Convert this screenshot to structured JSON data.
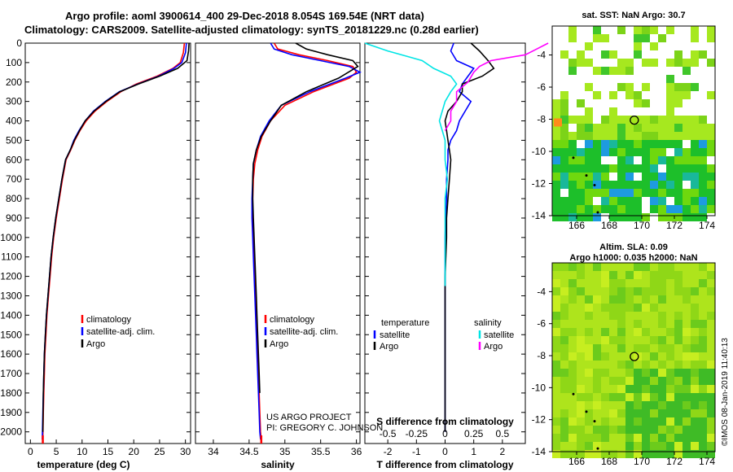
{
  "header": {
    "line1": "Argo profile: aoml 3900614_400 29-Dec-2018 8.054S 169.54E (NRT data)",
    "line2": "Climatology: CARS2009. Satellite-adjusted climatology: synTS_20181229.nc (0.28d earlier)"
  },
  "credits": {
    "project": "US ARGO PROJECT",
    "pi": "PI: GREGORY C. JOHNSON",
    "imos": "©IMOS 08-Jan-2019 11:40:13"
  },
  "colors": {
    "climatology": "#ff0000",
    "satellite": "#0000ff",
    "argo": "#000000",
    "sat_salinity": "#00e5e5",
    "argo_salinity": "#ff00ff"
  },
  "chart_data": [
    {
      "type": "line",
      "xlabel": "temperature (deg C)",
      "ylabel": "",
      "xlim": [
        -1,
        31
      ],
      "ylim": [
        2060,
        0
      ],
      "xticks": [
        0,
        5,
        10,
        15,
        20,
        25,
        30
      ],
      "yticks": [
        0,
        100,
        200,
        300,
        400,
        500,
        600,
        700,
        800,
        900,
        1000,
        1100,
        1200,
        1300,
        1400,
        1500,
        1600,
        1700,
        1800,
        1900,
        2000
      ],
      "legend": [
        "climatology",
        "satellite-adj. clim.",
        "Argo"
      ],
      "series": [
        {
          "name": "climatology",
          "color": "#ff0000",
          "x": [
            29.8,
            29.6,
            29.0,
            27.6,
            24.5,
            20.5,
            17.5,
            14.8,
            12.5,
            10.8,
            9.6,
            8.6,
            7.8,
            6.9,
            6.2,
            5.6,
            5.0,
            4.5,
            4.1,
            3.8,
            3.5,
            3.2,
            3.0,
            2.8,
            2.7,
            2.6,
            2.5,
            2.4
          ],
          "y": [
            0,
            50,
            100,
            130,
            170,
            210,
            250,
            300,
            350,
            400,
            450,
            500,
            550,
            600,
            700,
            800,
            900,
            1000,
            1100,
            1200,
            1300,
            1400,
            1500,
            1600,
            1700,
            1800,
            1900,
            2040
          ]
        },
        {
          "name": "satellite-adj. clim.",
          "color": "#0000ff",
          "x": [
            30.2,
            30.0,
            29.3,
            27.8,
            24.8,
            20.8,
            17.2,
            14.5,
            12.2,
            10.6,
            9.4,
            8.4,
            7.7,
            6.8,
            6.1,
            5.5,
            4.9,
            4.4,
            4.0,
            3.7,
            3.4,
            3.1,
            2.9,
            2.7,
            2.6,
            2.5,
            2.4,
            2.3
          ],
          "y": [
            0,
            50,
            100,
            130,
            170,
            210,
            250,
            300,
            350,
            400,
            450,
            500,
            550,
            600,
            700,
            800,
            900,
            1000,
            1100,
            1200,
            1300,
            1400,
            1500,
            1600,
            1700,
            1800,
            1900,
            2040
          ]
        },
        {
          "name": "Argo",
          "color": "#000000",
          "x": [
            30.7,
            30.6,
            30.3,
            28.5,
            25.0,
            20.9,
            17.3,
            14.6,
            12.3,
            10.6,
            9.5,
            8.5,
            7.7,
            6.8,
            6.1,
            5.5,
            4.9,
            4.4,
            4.0,
            3.7,
            3.4,
            3.1,
            2.9,
            2.7,
            2.6,
            2.5,
            2.4
          ],
          "y": [
            0,
            40,
            90,
            130,
            170,
            210,
            250,
            300,
            350,
            400,
            450,
            500,
            550,
            600,
            700,
            800,
            900,
            1000,
            1100,
            1200,
            1300,
            1400,
            1500,
            1600,
            1700,
            1800,
            2000
          ]
        }
      ]
    },
    {
      "type": "line",
      "xlabel": "salinity",
      "xlim": [
        33.75,
        36.05
      ],
      "ylim": [
        2060,
        0
      ],
      "xticks": [
        34,
        34.5,
        35,
        35.5,
        36
      ],
      "legend": [
        "climatology",
        "satellite-adj. clim.",
        "Argo"
      ],
      "series": [
        {
          "name": "climatology",
          "color": "#ff0000",
          "x": [
            34.85,
            34.9,
            35.2,
            35.6,
            35.95,
            36.0,
            35.9,
            35.4,
            35.0,
            34.8,
            34.68,
            34.62,
            34.58,
            34.56,
            34.55,
            34.55,
            34.56,
            34.57,
            34.58,
            34.59,
            34.6,
            34.61,
            34.62,
            34.63,
            34.64,
            34.65,
            34.66,
            34.67
          ],
          "y": [
            0,
            30,
            60,
            90,
            120,
            150,
            180,
            250,
            320,
            400,
            480,
            550,
            620,
            700,
            800,
            900,
            1000,
            1100,
            1200,
            1300,
            1400,
            1500,
            1600,
            1700,
            1800,
            1900,
            2000,
            2040
          ]
        },
        {
          "name": "satellite-adj. clim.",
          "color": "#0000ff",
          "x": [
            34.8,
            34.85,
            35.1,
            35.5,
            35.9,
            36.05,
            35.85,
            35.35,
            34.95,
            34.78,
            34.66,
            34.6,
            34.56,
            34.55,
            34.54,
            34.54,
            34.55,
            34.56,
            34.57,
            34.58,
            34.59,
            34.6,
            34.61,
            34.62,
            34.63,
            34.64,
            34.65,
            34.66
          ],
          "y": [
            0,
            30,
            60,
            90,
            120,
            150,
            180,
            250,
            320,
            400,
            480,
            550,
            620,
            700,
            800,
            900,
            1000,
            1100,
            1200,
            1300,
            1400,
            1500,
            1600,
            1700,
            1800,
            1900,
            2000,
            2040
          ]
        },
        {
          "name": "Argo",
          "color": "#000000",
          "x": [
            35.15,
            35.3,
            35.6,
            35.95,
            36.02,
            35.75,
            35.3,
            34.95,
            34.8,
            34.67,
            34.6,
            34.56,
            34.55,
            34.55,
            34.56,
            34.57,
            34.58,
            34.59,
            34.6,
            34.61,
            34.62,
            34.63,
            34.64,
            34.65
          ],
          "y": [
            0,
            30,
            60,
            90,
            120,
            180,
            250,
            320,
            400,
            480,
            550,
            620,
            700,
            800,
            900,
            1000,
            1100,
            1200,
            1300,
            1400,
            1500,
            1600,
            1700,
            1800
          ]
        }
      ]
    },
    {
      "type": "line",
      "xlabel": "T difference from climatology",
      "xlabel_top": "S difference from climatology",
      "xlim": [
        -2.8,
        2.8
      ],
      "ylim": [
        2060,
        0
      ],
      "xticks": [
        -2,
        -1,
        0,
        1,
        2
      ],
      "xticks_top": [
        -0.5,
        -0.25,
        0,
        0.25,
        0.5
      ],
      "legend_left_title": "temperature",
      "legend_right_title": "salinity",
      "legend_left": [
        "satellite",
        "Argo"
      ],
      "legend_right": [
        "satellite",
        "Argo"
      ],
      "series": [
        {
          "name": "satellite",
          "color": "#0000ff",
          "x": [
            0.3,
            0.2,
            0.4,
            1.0,
            0.8,
            0.6,
            0.5,
            0.9,
            0.7,
            0.5,
            0.4,
            0.2,
            0.1,
            0.1,
            0.05,
            0.05,
            0.02,
            0.0,
            0.0,
            0.0,
            0.0,
            0.0,
            0.0
          ],
          "y": [
            0,
            40,
            90,
            130,
            170,
            210,
            250,
            300,
            350,
            400,
            450,
            500,
            550,
            600,
            700,
            800,
            900,
            1000,
            1200,
            1400,
            1600,
            1800,
            2000
          ]
        },
        {
          "name": "Argo",
          "color": "#000000",
          "x": [
            0.9,
            1.2,
            1.5,
            1.7,
            1.3,
            0.6,
            0.6,
            0.4,
            0.1,
            0.0,
            0.05,
            0.1,
            0.15,
            0.2,
            0.15,
            0.1,
            0.05,
            0.05,
            0.0,
            0.0,
            0.0,
            0.0,
            0.0
          ],
          "y": [
            0,
            40,
            90,
            130,
            170,
            210,
            250,
            300,
            350,
            400,
            450,
            500,
            550,
            600,
            700,
            800,
            900,
            1000,
            1200,
            1400,
            1600,
            1800,
            2000
          ]
        },
        {
          "name": "satellite (S)",
          "color": "#00e5e5",
          "x": [
            -0.7,
            -0.5,
            -0.2,
            -0.1,
            0.05,
            0.1,
            0.05,
            0.0,
            -0.05,
            0.0,
            0.0,
            0.02,
            0.0,
            0.0,
            0.0,
            0.0,
            0.0,
            0.0
          ],
          "y": [
            0,
            40,
            90,
            130,
            170,
            210,
            250,
            300,
            400,
            500,
            600,
            700,
            800,
            900,
            1000,
            1100,
            1200,
            1250
          ]
        },
        {
          "name": "Argo (S)",
          "color": "#ff00ff",
          "x": [
            0.9,
            0.8,
            0.7,
            0.4,
            0.3,
            0.25,
            0.2,
            0.1,
            0.1,
            0.05,
            0.05,
            0.0
          ],
          "y": [
            0,
            30,
            60,
            90,
            120,
            150,
            200,
            250,
            300,
            350,
            400,
            450
          ]
        }
      ]
    },
    {
      "type": "heatmap",
      "title": "sat. SST: NaN Argo: 30.7",
      "xticks": [
        166,
        168,
        170,
        172,
        174
      ],
      "yticks": [
        -4,
        -6,
        -8,
        -10,
        -12,
        -14
      ],
      "xlim": [
        164.5,
        174.5
      ],
      "ylim": [
        -14,
        -2.2
      ],
      "marker": {
        "lon": 169.54,
        "lat": -8.054
      }
    },
    {
      "type": "heatmap",
      "title": "Altim. SLA: 0.09",
      "subtitle": "Argo h1000: 0.035 h2000: NaN",
      "xticks": [
        166,
        168,
        170,
        172,
        174
      ],
      "yticks": [
        -4,
        -6,
        -8,
        -10,
        -12,
        -14
      ],
      "xlim": [
        164.5,
        174.5
      ],
      "ylim": [
        -14,
        -2.2
      ],
      "marker": {
        "lon": 169.54,
        "lat": -8.054
      }
    }
  ]
}
